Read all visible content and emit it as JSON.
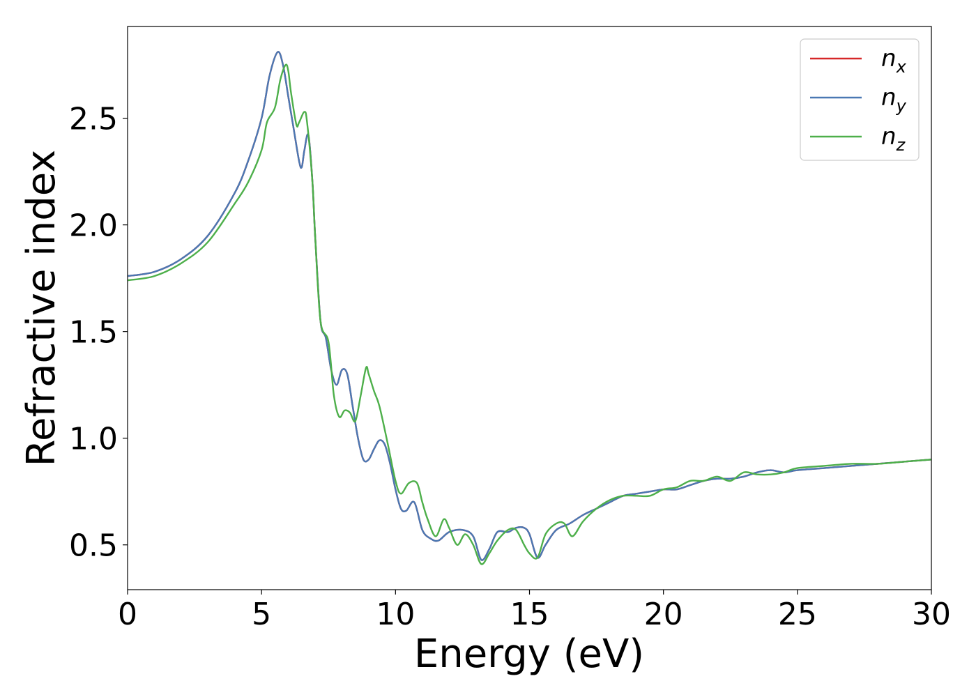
{
  "chart_data": {
    "type": "line",
    "xlabel": "Energy (eV)",
    "ylabel": "Refractive index",
    "xlim": [
      0,
      30
    ],
    "ylim": [
      0.29,
      2.93
    ],
    "x_ticks": [
      0,
      5,
      10,
      15,
      20,
      25,
      30
    ],
    "y_ticks": [
      0.5,
      1.0,
      1.5,
      2.0,
      2.5
    ],
    "x_tick_labels": [
      "0",
      "5",
      "10",
      "15",
      "20",
      "25",
      "30"
    ],
    "y_tick_labels": [
      "0.5",
      "1.0",
      "1.5",
      "2.0",
      "2.5"
    ],
    "grid": false,
    "legend_position": "upper right",
    "series": [
      {
        "name": "n_x",
        "legend": {
          "base": "n",
          "sub": "x"
        },
        "color": "#d62728",
        "x": [
          0,
          1,
          2,
          3,
          4,
          4.5,
          5,
          5.3,
          5.6,
          5.8,
          6.0,
          6.2,
          6.4,
          6.5,
          6.6,
          6.75,
          6.9,
          7.0,
          7.2,
          7.4,
          7.6,
          7.8,
          8.0,
          8.2,
          8.4,
          8.6,
          8.8,
          9.0,
          9.2,
          9.4,
          9.6,
          9.8,
          10.0,
          10.2,
          10.4,
          10.7,
          11.0,
          11.3,
          11.6,
          12.0,
          12.5,
          12.9,
          13.2,
          13.5,
          13.8,
          14.2,
          14.5,
          14.8,
          15.0,
          15.3,
          15.6,
          16.0,
          16.5,
          17.0,
          17.5,
          18.0,
          18.5,
          19.0,
          19.5,
          20.0,
          20.5,
          21.0,
          21.5,
          22.0,
          22.5,
          23.0,
          23.5,
          24.0,
          24.5,
          25.0,
          26.0,
          27.0,
          28.0,
          29.0,
          30.0
        ],
        "y": [
          1.76,
          1.78,
          1.84,
          1.95,
          2.15,
          2.3,
          2.5,
          2.7,
          2.81,
          2.75,
          2.6,
          2.45,
          2.3,
          2.27,
          2.35,
          2.42,
          2.2,
          1.95,
          1.55,
          1.47,
          1.32,
          1.25,
          1.32,
          1.3,
          1.15,
          1.0,
          0.9,
          0.9,
          0.95,
          0.99,
          0.97,
          0.88,
          0.76,
          0.67,
          0.66,
          0.7,
          0.57,
          0.53,
          0.52,
          0.56,
          0.57,
          0.54,
          0.43,
          0.48,
          0.56,
          0.56,
          0.58,
          0.58,
          0.55,
          0.44,
          0.5,
          0.57,
          0.6,
          0.64,
          0.67,
          0.7,
          0.73,
          0.74,
          0.75,
          0.76,
          0.76,
          0.78,
          0.8,
          0.81,
          0.81,
          0.82,
          0.84,
          0.85,
          0.84,
          0.85,
          0.86,
          0.87,
          0.88,
          0.89,
          0.9
        ]
      },
      {
        "name": "n_y",
        "legend": {
          "base": "n",
          "sub": "y"
        },
        "color": "#4a78b3",
        "x": [
          0,
          1,
          2,
          3,
          4,
          4.5,
          5,
          5.3,
          5.6,
          5.8,
          6.0,
          6.2,
          6.4,
          6.5,
          6.6,
          6.75,
          6.9,
          7.0,
          7.2,
          7.4,
          7.6,
          7.8,
          8.0,
          8.2,
          8.4,
          8.6,
          8.8,
          9.0,
          9.2,
          9.4,
          9.6,
          9.8,
          10.0,
          10.2,
          10.4,
          10.7,
          11.0,
          11.3,
          11.6,
          12.0,
          12.5,
          12.9,
          13.2,
          13.5,
          13.8,
          14.2,
          14.5,
          14.8,
          15.0,
          15.3,
          15.6,
          16.0,
          16.5,
          17.0,
          17.5,
          18.0,
          18.5,
          19.0,
          19.5,
          20.0,
          20.5,
          21.0,
          21.5,
          22.0,
          22.5,
          23.0,
          23.5,
          24.0,
          24.5,
          25.0,
          26.0,
          27.0,
          28.0,
          29.0,
          30.0
        ],
        "y": [
          1.76,
          1.78,
          1.84,
          1.95,
          2.15,
          2.3,
          2.5,
          2.7,
          2.81,
          2.75,
          2.6,
          2.45,
          2.3,
          2.27,
          2.35,
          2.42,
          2.2,
          1.95,
          1.55,
          1.47,
          1.32,
          1.25,
          1.32,
          1.3,
          1.15,
          1.0,
          0.9,
          0.9,
          0.95,
          0.99,
          0.97,
          0.88,
          0.76,
          0.67,
          0.66,
          0.7,
          0.57,
          0.53,
          0.52,
          0.56,
          0.57,
          0.54,
          0.43,
          0.48,
          0.56,
          0.56,
          0.58,
          0.58,
          0.55,
          0.44,
          0.5,
          0.57,
          0.6,
          0.64,
          0.67,
          0.7,
          0.73,
          0.74,
          0.75,
          0.76,
          0.76,
          0.78,
          0.8,
          0.81,
          0.81,
          0.82,
          0.84,
          0.85,
          0.84,
          0.85,
          0.86,
          0.87,
          0.88,
          0.89,
          0.9
        ]
      },
      {
        "name": "n_z",
        "legend": {
          "base": "n",
          "sub": "z"
        },
        "color": "#4daf4a",
        "x": [
          0,
          1,
          2,
          3,
          4,
          4.5,
          5,
          5.2,
          5.5,
          5.7,
          5.9,
          6.0,
          6.1,
          6.3,
          6.4,
          6.6,
          6.7,
          6.9,
          7.0,
          7.2,
          7.5,
          7.7,
          7.9,
          8.1,
          8.3,
          8.5,
          8.7,
          8.9,
          9.0,
          9.2,
          9.4,
          9.7,
          10.0,
          10.2,
          10.5,
          10.8,
          11.0,
          11.2,
          11.5,
          11.8,
          12.0,
          12.3,
          12.6,
          12.9,
          13.2,
          13.5,
          13.8,
          14.2,
          14.5,
          14.8,
          15.0,
          15.3,
          15.6,
          16.0,
          16.3,
          16.6,
          17.0,
          17.5,
          18.0,
          18.5,
          19.0,
          19.5,
          20.0,
          20.5,
          21.0,
          21.5,
          22.0,
          22.5,
          23.0,
          23.5,
          24.0,
          24.5,
          25.0,
          26.0,
          27.0,
          28.0,
          29.0,
          30.0
        ],
        "y": [
          1.74,
          1.76,
          1.82,
          1.92,
          2.1,
          2.2,
          2.35,
          2.48,
          2.55,
          2.68,
          2.75,
          2.72,
          2.62,
          2.47,
          2.48,
          2.53,
          2.48,
          2.2,
          1.95,
          1.55,
          1.45,
          1.2,
          1.1,
          1.13,
          1.12,
          1.08,
          1.2,
          1.33,
          1.3,
          1.22,
          1.15,
          0.98,
          0.8,
          0.74,
          0.79,
          0.79,
          0.7,
          0.62,
          0.54,
          0.62,
          0.58,
          0.5,
          0.55,
          0.5,
          0.41,
          0.46,
          0.52,
          0.57,
          0.57,
          0.5,
          0.46,
          0.44,
          0.55,
          0.6,
          0.6,
          0.54,
          0.61,
          0.67,
          0.71,
          0.73,
          0.73,
          0.73,
          0.76,
          0.77,
          0.8,
          0.8,
          0.82,
          0.8,
          0.84,
          0.83,
          0.83,
          0.84,
          0.86,
          0.87,
          0.88,
          0.88,
          0.89,
          0.9
        ]
      }
    ]
  }
}
